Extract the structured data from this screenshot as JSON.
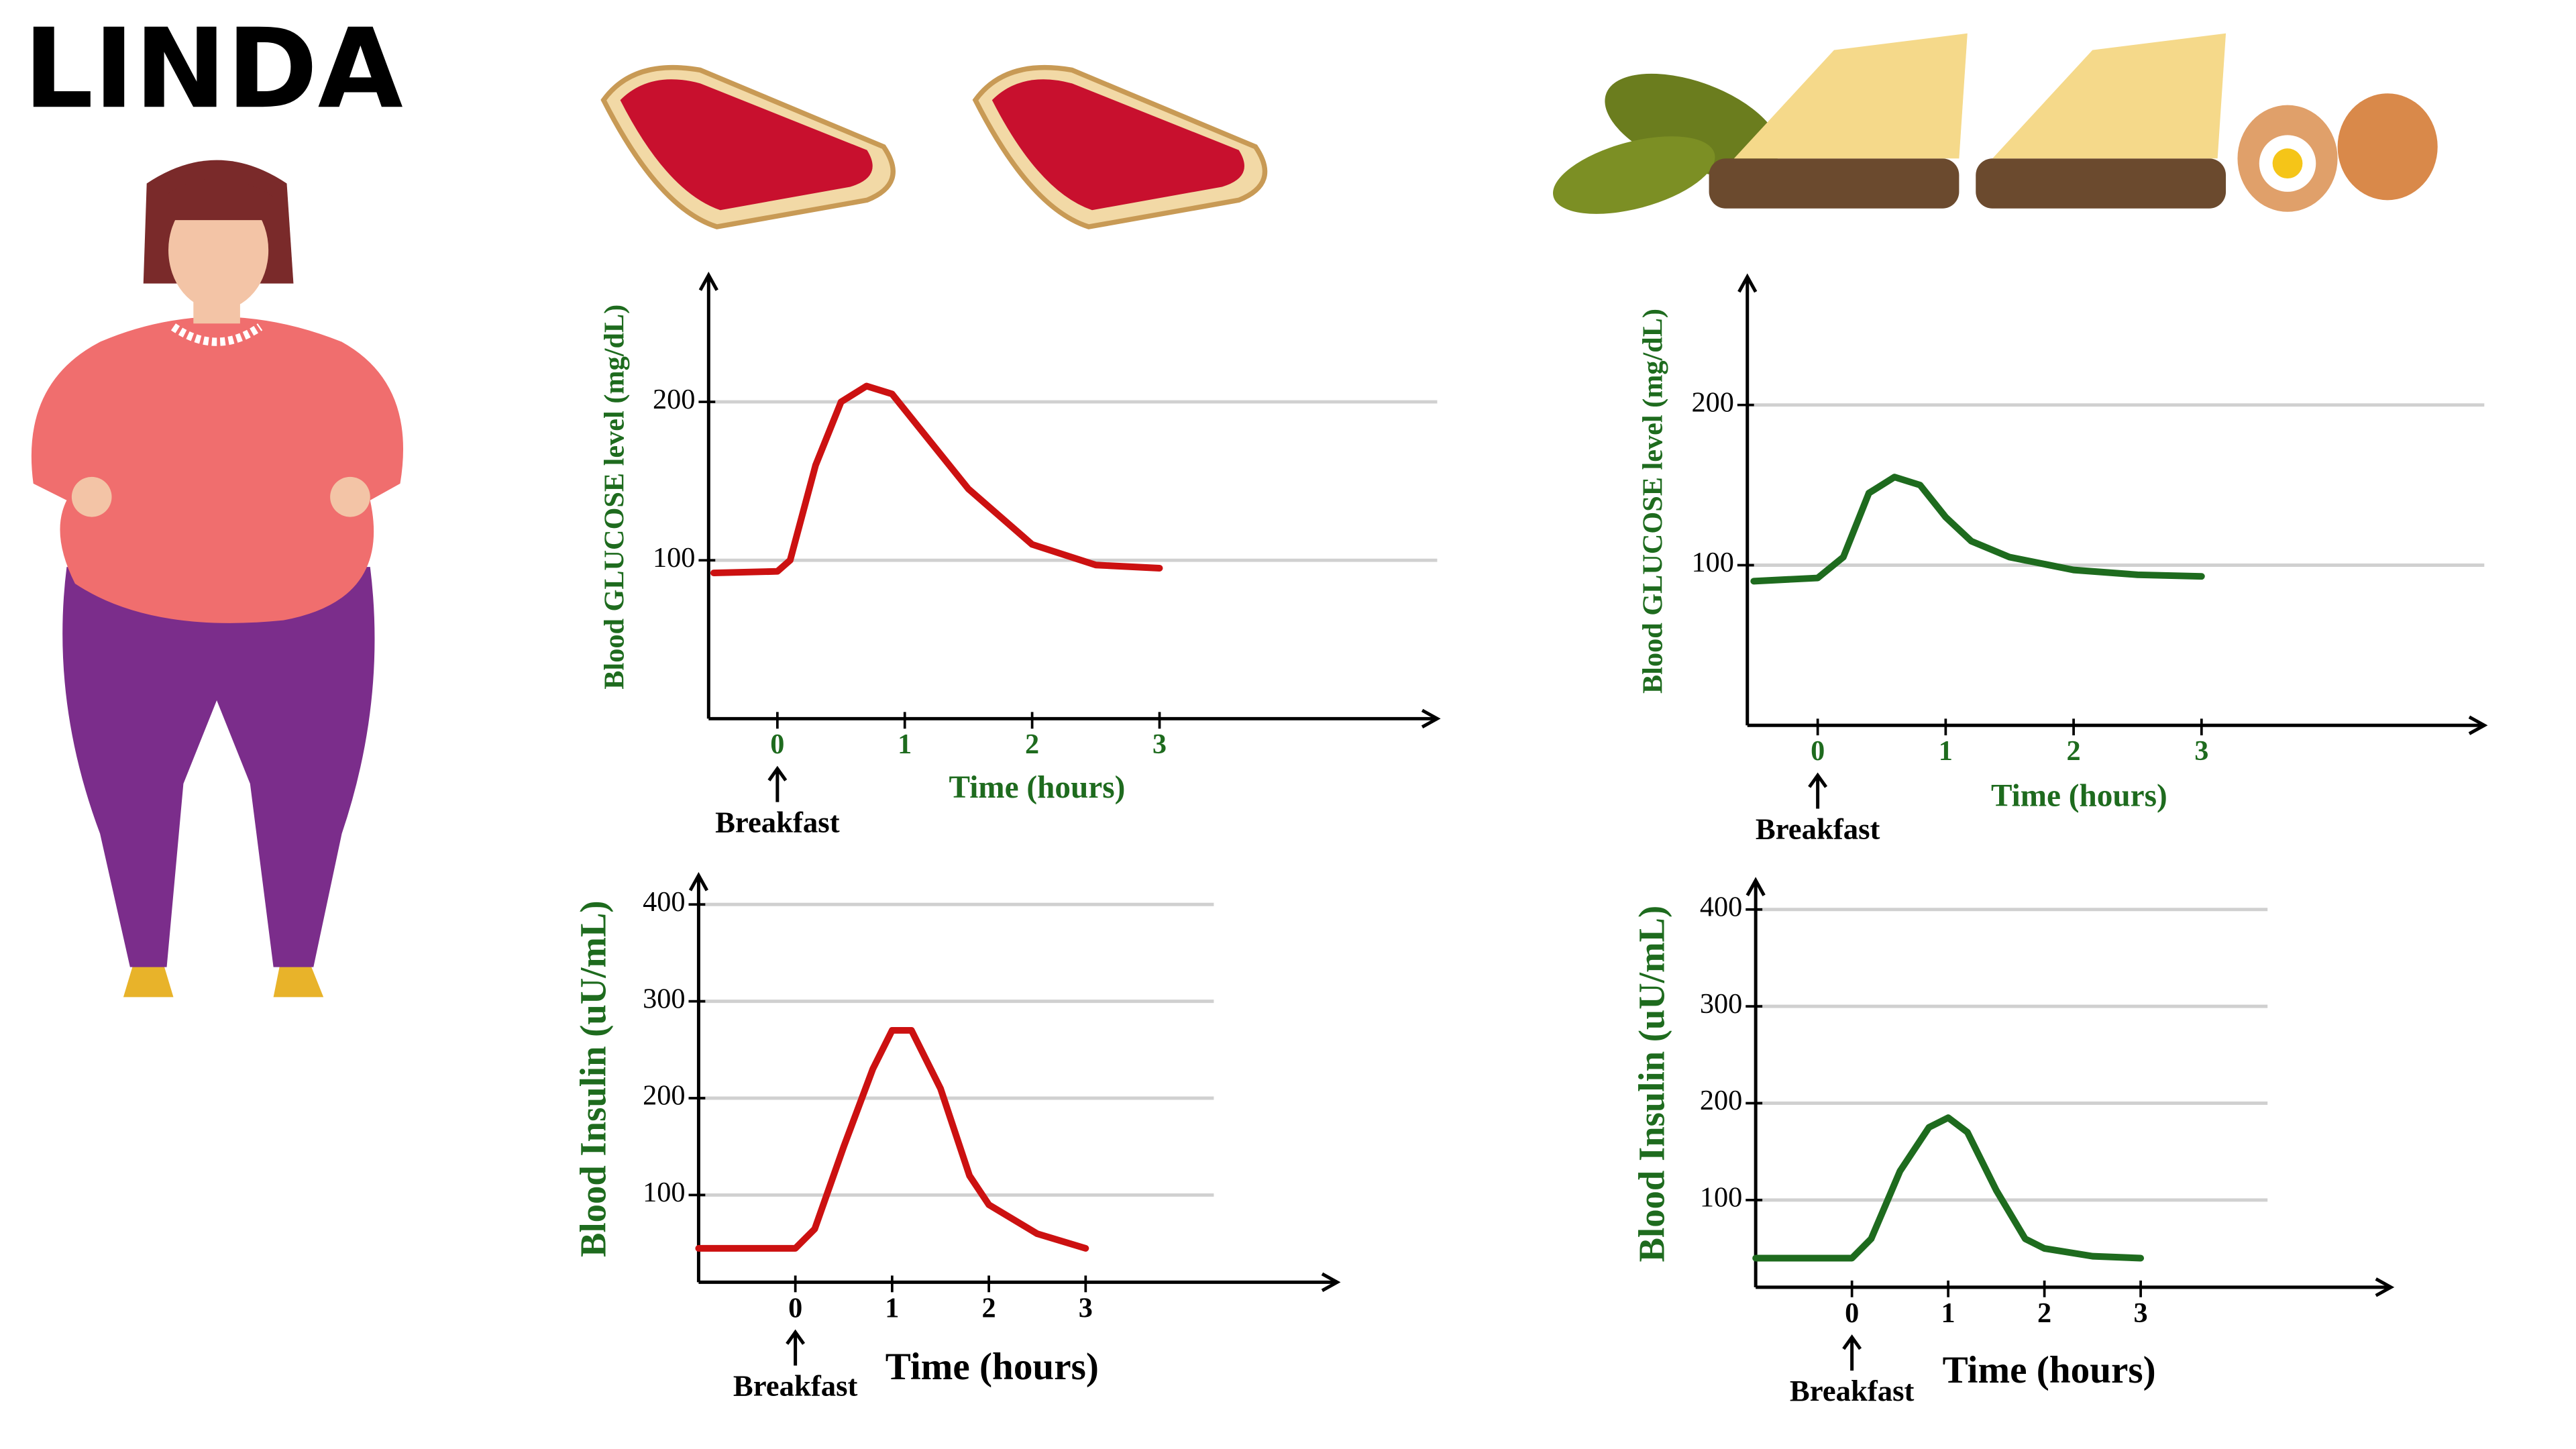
{
  "title": "LINDA",
  "chart_data": [
    {
      "type": "line",
      "y_label": "Blood GLUCOSE level (mg/dL)",
      "x_label": "Time (hours)",
      "annotation": "Breakfast",
      "x": [
        -0.5,
        0,
        0.1,
        0.3,
        0.5,
        0.7,
        0.9,
        1.1,
        1.5,
        2,
        2.5,
        3
      ],
      "values": [
        92,
        93,
        100,
        160,
        200,
        210,
        205,
        185,
        145,
        110,
        97,
        95
      ],
      "color": "#cc1111",
      "xlim": [
        -0.54,
        5.18
      ],
      "ylim": [
        0,
        280
      ],
      "xticks": [
        0,
        1,
        2,
        3
      ],
      "yticks": [
        100,
        200
      ],
      "grid": true
    },
    {
      "type": "line",
      "y_label": "Blood GLUCOSE level (mg/dL)",
      "x_label": "Time (hours)",
      "annotation": "Breakfast",
      "x": [
        -0.5,
        0,
        0.2,
        0.4,
        0.6,
        0.8,
        1,
        1.2,
        1.5,
        2,
        2.5,
        3
      ],
      "values": [
        90,
        92,
        105,
        145,
        155,
        150,
        130,
        115,
        105,
        97,
        94,
        93
      ],
      "color": "#1e6b1e",
      "xlim": [
        -0.55,
        5.21
      ],
      "ylim": [
        0,
        280
      ],
      "xticks": [
        0,
        1,
        2,
        3
      ],
      "yticks": [
        100,
        200
      ],
      "grid": true
    },
    {
      "type": "line",
      "y_label": "Blood Insulin (uU/mL)",
      "x_label": "Time (hours)",
      "annotation": "Breakfast",
      "x": [
        -1,
        0,
        0.2,
        0.5,
        0.8,
        1,
        1.2,
        1.5,
        1.8,
        2,
        2.5,
        3
      ],
      "values": [
        45,
        45,
        65,
        150,
        230,
        270,
        270,
        210,
        120,
        90,
        60,
        45
      ],
      "color": "#cc1111",
      "xlim": [
        -1,
        5.6
      ],
      "ylim": [
        10,
        430
      ],
      "xticks": [
        0,
        1,
        2,
        3
      ],
      "yticks": [
        100,
        200,
        300,
        400
      ],
      "grid": true
    },
    {
      "type": "line",
      "y_label": "Blood Insulin (uU/mL)",
      "x_label": "Time (hours)",
      "annotation": "Breakfast",
      "x": [
        -1,
        0,
        0.2,
        0.5,
        0.8,
        1,
        1.2,
        1.5,
        1.8,
        2,
        2.5,
        3
      ],
      "values": [
        40,
        40,
        60,
        130,
        175,
        185,
        170,
        110,
        60,
        50,
        42,
        40
      ],
      "color": "#1e6b1e",
      "xlim": [
        -1,
        5.6
      ],
      "ylim": [
        10,
        430
      ],
      "xticks": [
        0,
        1,
        2,
        3
      ],
      "yticks": [
        100,
        200,
        300,
        400
      ],
      "grid": true
    }
  ]
}
